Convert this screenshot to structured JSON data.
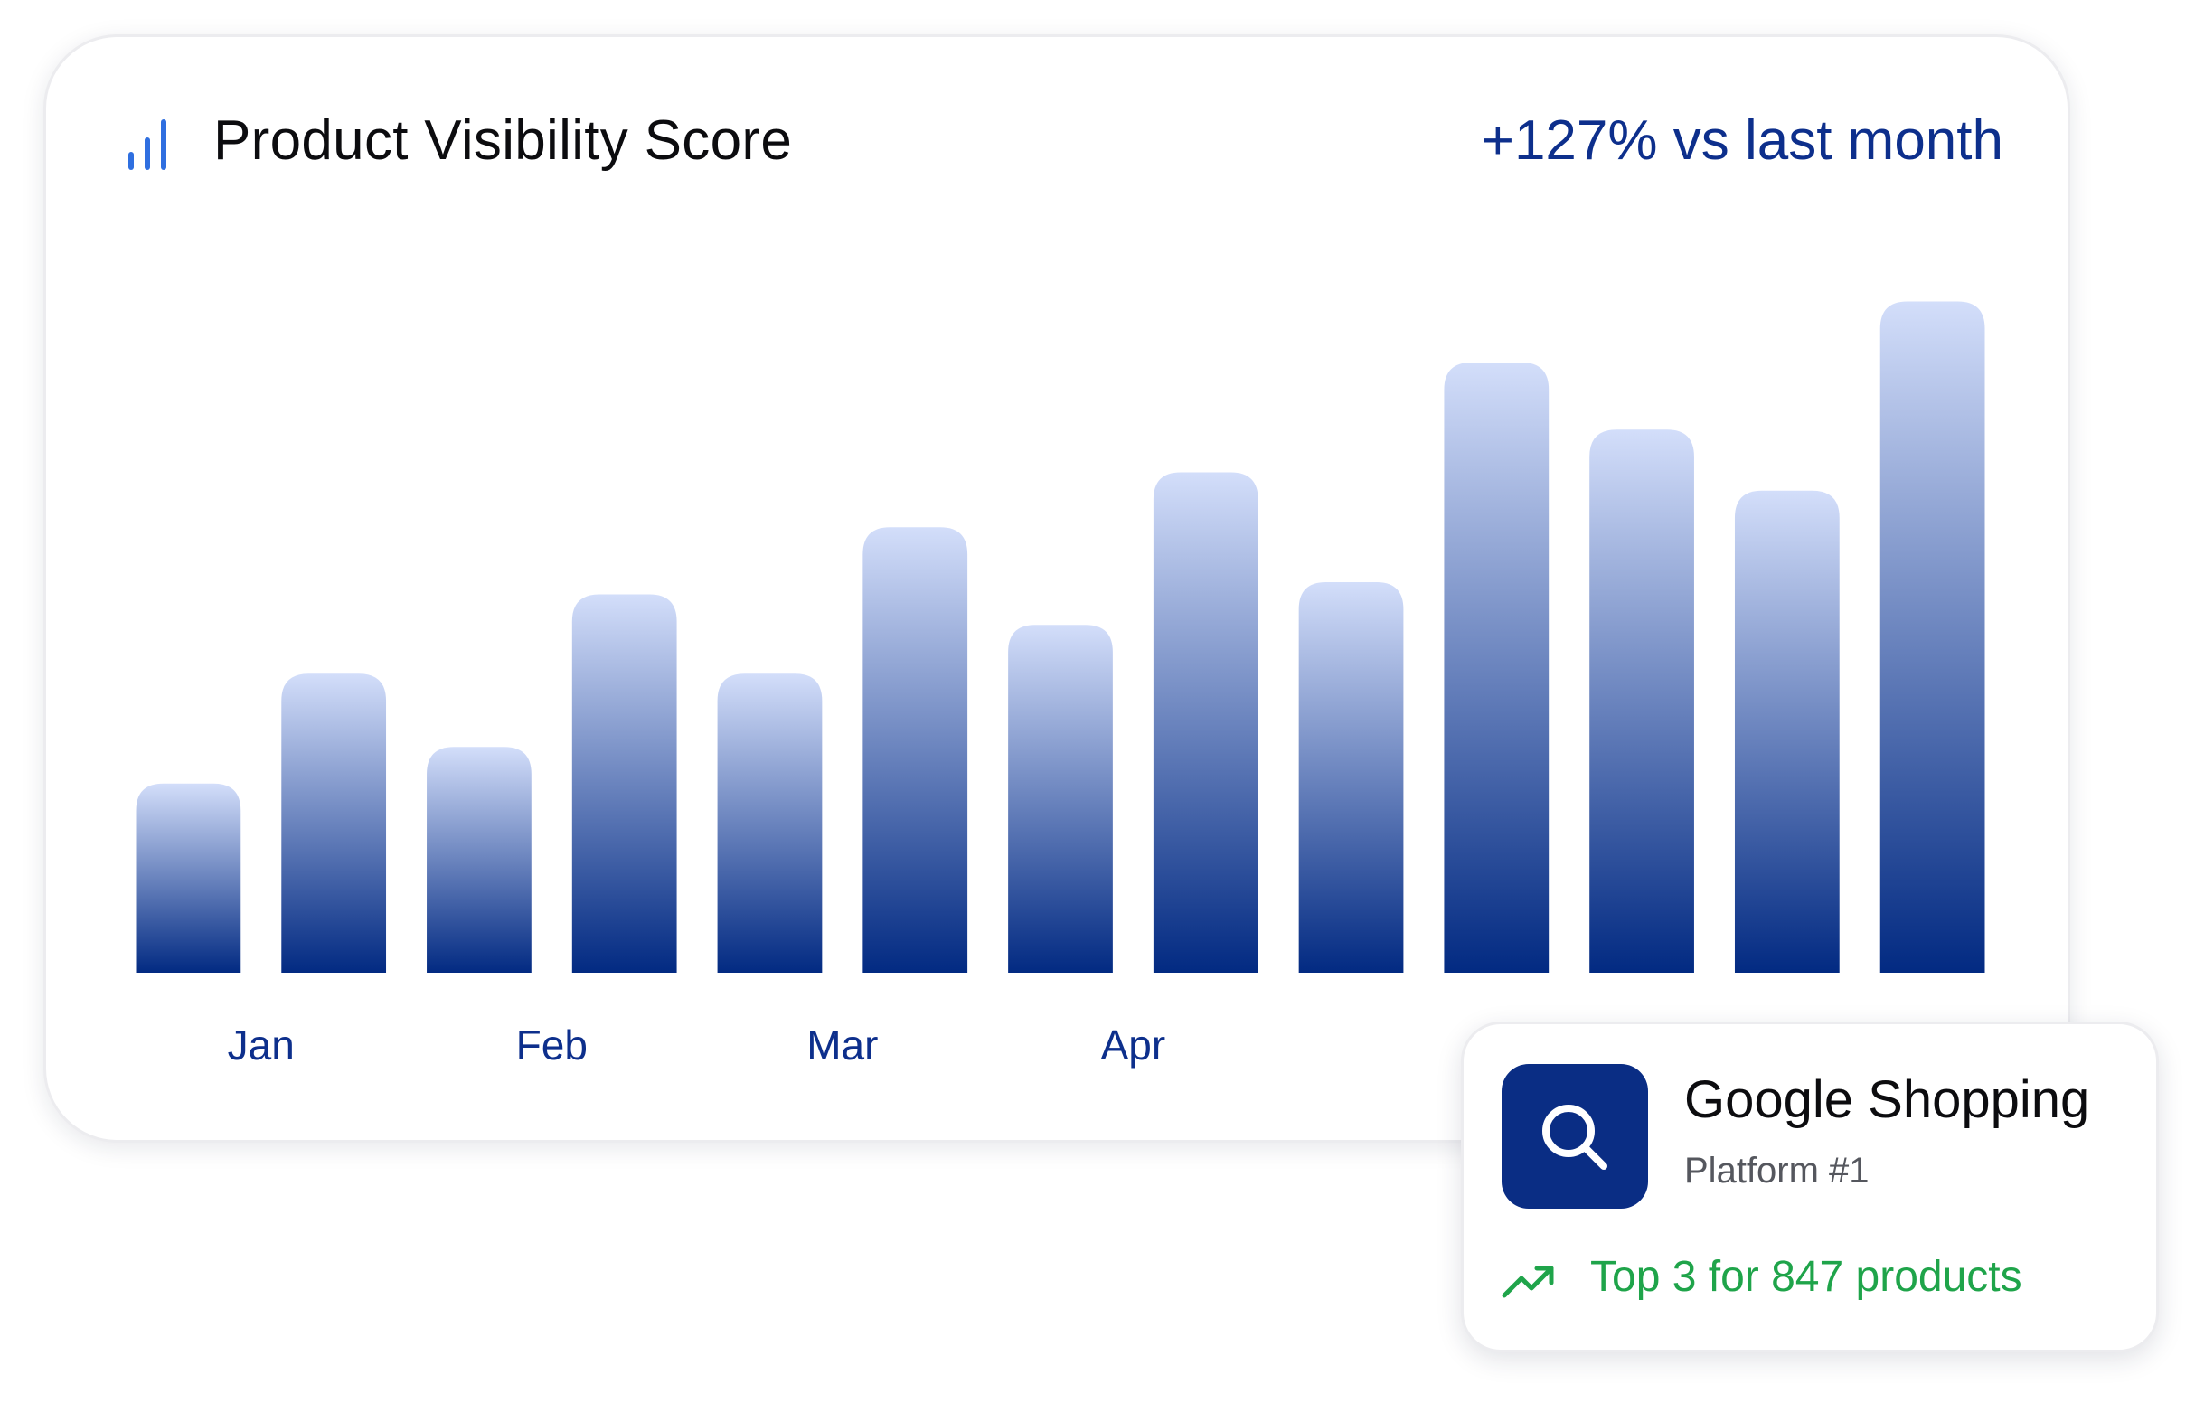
{
  "header": {
    "title": "Product Visibility Score",
    "delta": "+127% vs last month",
    "icon": "bar-chart-icon"
  },
  "colors": {
    "bar_top": "#d3defa",
    "bar_bottom": "#022a82",
    "accent": "#0d2f8c",
    "icon_blue": "#2f6fe0",
    "positive": "#1fa44a"
  },
  "chart_data": {
    "type": "bar",
    "title": "Product Visibility Score",
    "x_tick_labels": [
      "Jan",
      "Feb",
      "Mar",
      "Apr"
    ],
    "values": [
      31,
      49,
      37,
      62,
      49,
      73,
      57,
      82,
      64,
      100,
      89,
      79,
      110
    ],
    "ylim": [
      0,
      110
    ],
    "grid": false,
    "legend": "none"
  },
  "platform_card": {
    "icon": "search-icon",
    "name": "Google Shopping",
    "rank": "Platform #1",
    "trend_icon": "trending-up-icon",
    "trend_text": "Top 3 for 847 products"
  }
}
